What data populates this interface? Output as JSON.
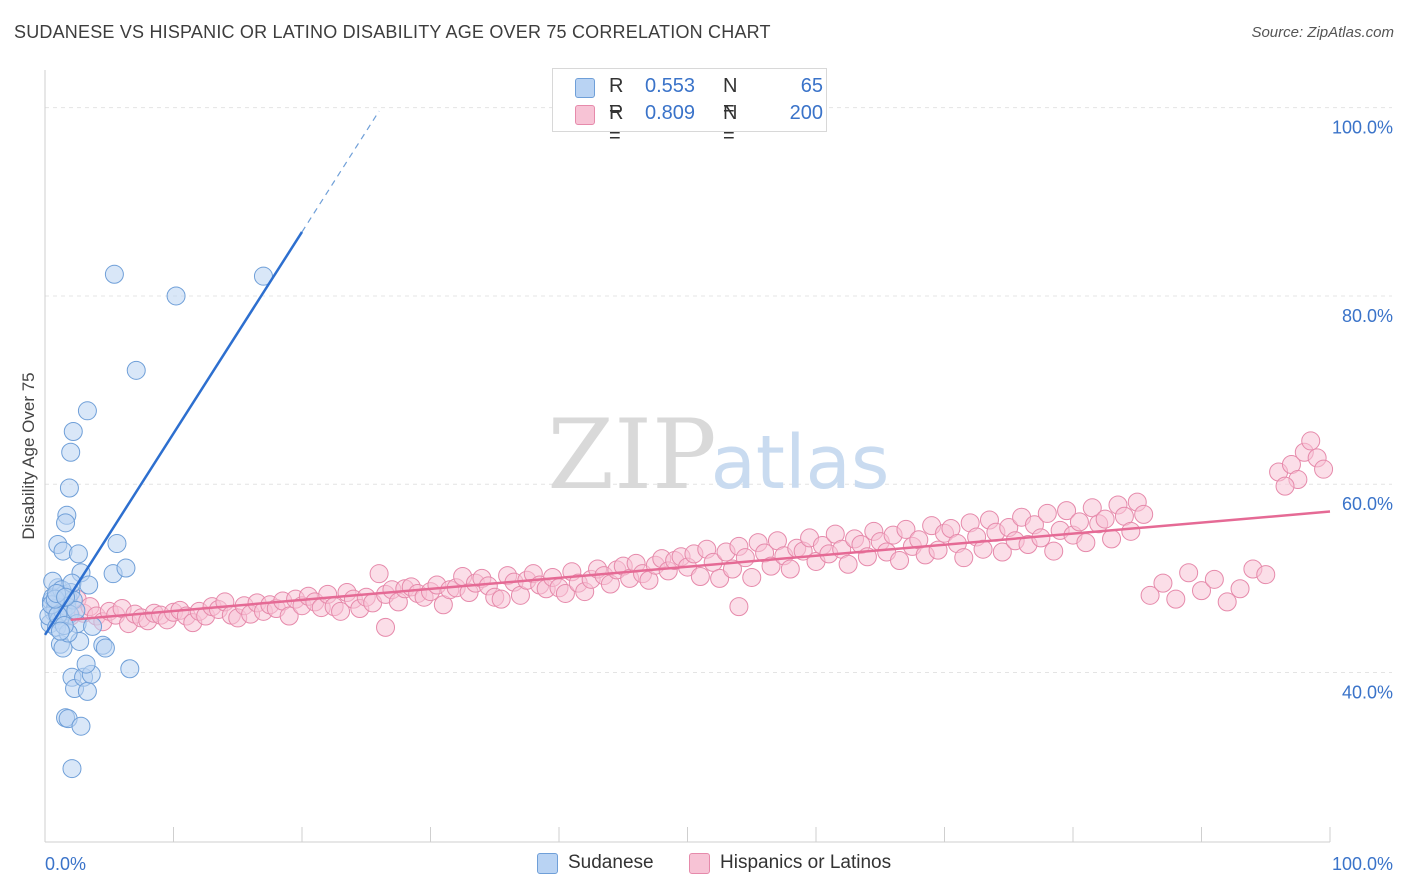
{
  "header": {
    "title": "SUDANESE VS HISPANIC OR LATINO DISABILITY AGE OVER 75 CORRELATION CHART",
    "source": "Source: ZipAtlas.com"
  },
  "watermark": {
    "zip": "ZIP",
    "atlas": "atlas"
  },
  "legend_top": [
    {
      "r_label": "R =",
      "r_value": "0.553",
      "n_label": "N =",
      "n_value": "65"
    },
    {
      "r_label": "R =",
      "r_value": "0.809",
      "n_label": "N =",
      "n_value": "200"
    }
  ],
  "legend_bottom": {
    "series1": "Sudanese",
    "series2": "Hispanics or Latinos"
  },
  "colors": {
    "blue_fill": "#b9d3f3",
    "blue_stroke": "#6f9fd8",
    "blue_line": "#2d6fcf",
    "pink_fill": "#f7c3d5",
    "pink_stroke": "#e68aab",
    "pink_line": "#e56a95",
    "axis_text": "#3a73c9"
  },
  "chart_data": {
    "type": "scatter",
    "title": "SUDANESE VS HISPANIC OR LATINO DISABILITY AGE OVER 75 CORRELATION CHART",
    "ylabel": "Disability Age Over 75",
    "xlim": [
      0,
      100
    ],
    "ylim": [
      22,
      104
    ],
    "x_tick_labels": [
      "0.0%",
      "100.0%"
    ],
    "y_ticks": [
      {
        "value": 40,
        "label": "40.0%"
      },
      {
        "value": 60,
        "label": "60.0%"
      },
      {
        "value": 80,
        "label": "80.0%"
      },
      {
        "value": 100,
        "label": "100.0%"
      }
    ],
    "grid": "horizontal dashed",
    "legend": "top-center and bottom-center",
    "series": [
      {
        "name": "Sudanese",
        "r": 0.553,
        "n": 65,
        "trend": {
          "x0": 0,
          "y0": 44.0,
          "x1": 20,
          "y1": 86.8,
          "dashed_to_x": 26
        },
        "points": [
          [
            0.5,
            47.6
          ],
          [
            0.7,
            46.4
          ],
          [
            0.4,
            45.2
          ],
          [
            1.0,
            49.0
          ],
          [
            1.2,
            47.3
          ],
          [
            0.6,
            48.0
          ],
          [
            0.8,
            46.8
          ],
          [
            1.5,
            48.3
          ],
          [
            1.8,
            47.9
          ],
          [
            2.0,
            48.5
          ],
          [
            0.3,
            46.0
          ],
          [
            1.1,
            45.6
          ],
          [
            1.4,
            46.5
          ],
          [
            0.9,
            44.8
          ],
          [
            1.7,
            47.0
          ],
          [
            2.2,
            47.7
          ],
          [
            0.6,
            49.7
          ],
          [
            1.3,
            48.8
          ],
          [
            1.9,
            46.2
          ],
          [
            0.5,
            47.2
          ],
          [
            1.0,
            53.6
          ],
          [
            1.4,
            52.9
          ],
          [
            1.7,
            56.7
          ],
          [
            2.6,
            52.6
          ],
          [
            2.8,
            50.6
          ],
          [
            1.6,
            55.9
          ],
          [
            2.1,
            49.5
          ],
          [
            3.4,
            49.3
          ],
          [
            5.3,
            50.5
          ],
          [
            5.6,
            53.7
          ],
          [
            6.3,
            51.1
          ],
          [
            1.9,
            59.6
          ],
          [
            2.2,
            65.6
          ],
          [
            2.0,
            63.4
          ],
          [
            3.3,
            67.8
          ],
          [
            7.1,
            72.1
          ],
          [
            5.4,
            82.3
          ],
          [
            10.2,
            80.0
          ],
          [
            17.0,
            82.1
          ],
          [
            1.2,
            43.0
          ],
          [
            1.4,
            42.6
          ],
          [
            2.7,
            43.3
          ],
          [
            4.5,
            42.9
          ],
          [
            4.7,
            42.6
          ],
          [
            2.5,
            45.2
          ],
          [
            3.7,
            44.9
          ],
          [
            1.8,
            44.2
          ],
          [
            2.1,
            39.5
          ],
          [
            2.3,
            38.3
          ],
          [
            3.0,
            39.5
          ],
          [
            3.3,
            38.0
          ],
          [
            3.6,
            39.8
          ],
          [
            3.2,
            40.9
          ],
          [
            6.6,
            40.4
          ],
          [
            1.6,
            35.2
          ],
          [
            1.8,
            35.1
          ],
          [
            2.8,
            34.3
          ],
          [
            2.1,
            29.8
          ],
          [
            1.0,
            46.1
          ],
          [
            0.8,
            47.8
          ],
          [
            1.5,
            45.0
          ],
          [
            2.4,
            46.6
          ],
          [
            0.9,
            48.4
          ],
          [
            1.2,
            44.4
          ],
          [
            1.6,
            48.0
          ]
        ]
      },
      {
        "name": "Hispanics or Latinos",
        "r": 0.809,
        "n": 200,
        "trend": {
          "x0": 2,
          "y0": 45.6,
          "x1": 100,
          "y1": 57.1
        },
        "points": [
          [
            1.0,
            46.5
          ],
          [
            1.5,
            47.2
          ],
          [
            2.0,
            46.0
          ],
          [
            2.5,
            47.8
          ],
          [
            3.0,
            46.3
          ],
          [
            3.5,
            47.0
          ],
          [
            4.0,
            46.0
          ],
          [
            4.5,
            45.4
          ],
          [
            5.0,
            46.5
          ],
          [
            5.5,
            46.1
          ],
          [
            6.0,
            46.8
          ],
          [
            6.5,
            45.2
          ],
          [
            7.0,
            46.2
          ],
          [
            7.5,
            45.8
          ],
          [
            8.0,
            45.5
          ],
          [
            8.5,
            46.3
          ],
          [
            9.0,
            46.1
          ],
          [
            9.5,
            45.6
          ],
          [
            10.0,
            46.4
          ],
          [
            10.5,
            46.6
          ],
          [
            11.0,
            46.0
          ],
          [
            11.5,
            45.3
          ],
          [
            12.0,
            46.5
          ],
          [
            12.5,
            46.0
          ],
          [
            13.0,
            47.0
          ],
          [
            13.5,
            46.7
          ],
          [
            14.0,
            47.5
          ],
          [
            14.5,
            46.1
          ],
          [
            15.0,
            45.8
          ],
          [
            15.5,
            47.1
          ],
          [
            16.0,
            46.2
          ],
          [
            16.5,
            47.4
          ],
          [
            17.0,
            46.5
          ],
          [
            17.5,
            47.2
          ],
          [
            18.0,
            46.8
          ],
          [
            18.5,
            47.6
          ],
          [
            19.0,
            46.0
          ],
          [
            19.5,
            47.8
          ],
          [
            20.0,
            47.1
          ],
          [
            20.5,
            48.1
          ],
          [
            21.0,
            47.5
          ],
          [
            21.5,
            46.9
          ],
          [
            22.0,
            48.3
          ],
          [
            22.5,
            47.0
          ],
          [
            23.0,
            46.5
          ],
          [
            23.5,
            48.5
          ],
          [
            24.0,
            47.8
          ],
          [
            24.5,
            46.8
          ],
          [
            25.0,
            48.0
          ],
          [
            25.5,
            47.4
          ],
          [
            26.0,
            50.5
          ],
          [
            26.5,
            48.3
          ],
          [
            27.0,
            48.8
          ],
          [
            27.5,
            47.5
          ],
          [
            28.0,
            48.9
          ],
          [
            28.5,
            49.1
          ],
          [
            29.0,
            48.4
          ],
          [
            29.5,
            48.0
          ],
          [
            30.0,
            48.6
          ],
          [
            30.5,
            49.3
          ],
          [
            31.0,
            47.2
          ],
          [
            31.5,
            48.8
          ],
          [
            32.0,
            49.0
          ],
          [
            32.5,
            50.2
          ],
          [
            33.0,
            48.5
          ],
          [
            33.5,
            49.5
          ],
          [
            34.0,
            50.0
          ],
          [
            34.5,
            49.2
          ],
          [
            35.0,
            48.0
          ],
          [
            35.5,
            47.8
          ],
          [
            36.0,
            50.3
          ],
          [
            36.5,
            49.6
          ],
          [
            37.0,
            48.2
          ],
          [
            37.5,
            49.8
          ],
          [
            38.0,
            50.5
          ],
          [
            38.5,
            49.3
          ],
          [
            39.0,
            48.9
          ],
          [
            39.5,
            50.1
          ],
          [
            40.0,
            49.0
          ],
          [
            40.5,
            48.4
          ],
          [
            41.0,
            50.7
          ],
          [
            41.5,
            49.5
          ],
          [
            42.0,
            48.6
          ],
          [
            42.5,
            49.9
          ],
          [
            43.0,
            51.0
          ],
          [
            43.5,
            50.3
          ],
          [
            44.0,
            49.4
          ],
          [
            44.5,
            50.9
          ],
          [
            45.0,
            51.3
          ],
          [
            45.5,
            50.0
          ],
          [
            46.0,
            51.6
          ],
          [
            46.5,
            50.5
          ],
          [
            47.0,
            49.8
          ],
          [
            47.5,
            51.4
          ],
          [
            48.0,
            52.1
          ],
          [
            48.5,
            50.8
          ],
          [
            49.0,
            51.9
          ],
          [
            49.5,
            52.3
          ],
          [
            50.0,
            51.2
          ],
          [
            50.5,
            52.6
          ],
          [
            51.0,
            50.2
          ],
          [
            51.5,
            53.1
          ],
          [
            52.0,
            51.7
          ],
          [
            52.5,
            50.0
          ],
          [
            53.0,
            52.8
          ],
          [
            53.5,
            51.0
          ],
          [
            54.0,
            53.4
          ],
          [
            54.5,
            52.2
          ],
          [
            55.0,
            50.1
          ],
          [
            55.5,
            53.8
          ],
          [
            56.0,
            52.7
          ],
          [
            56.5,
            51.3
          ],
          [
            57.0,
            54.0
          ],
          [
            57.5,
            52.4
          ],
          [
            58.0,
            51.0
          ],
          [
            58.5,
            53.2
          ],
          [
            59.0,
            52.9
          ],
          [
            59.5,
            54.3
          ],
          [
            60.0,
            51.8
          ],
          [
            60.5,
            53.5
          ],
          [
            61.0,
            52.6
          ],
          [
            61.5,
            54.7
          ],
          [
            62.0,
            53.1
          ],
          [
            62.5,
            51.5
          ],
          [
            63.0,
            54.2
          ],
          [
            63.5,
            53.6
          ],
          [
            64.0,
            52.3
          ],
          [
            64.5,
            55.0
          ],
          [
            65.0,
            53.9
          ],
          [
            65.5,
            52.8
          ],
          [
            66.0,
            54.6
          ],
          [
            66.5,
            51.9
          ],
          [
            67.0,
            55.2
          ],
          [
            67.5,
            53.4
          ],
          [
            68.0,
            54.1
          ],
          [
            68.5,
            52.5
          ],
          [
            69.0,
            55.6
          ],
          [
            69.5,
            53.0
          ],
          [
            70.0,
            54.8
          ],
          [
            70.5,
            55.3
          ],
          [
            71.0,
            53.7
          ],
          [
            71.5,
            52.2
          ],
          [
            72.0,
            55.9
          ],
          [
            72.5,
            54.4
          ],
          [
            73.0,
            53.1
          ],
          [
            73.5,
            56.2
          ],
          [
            74.0,
            54.9
          ],
          [
            74.5,
            52.8
          ],
          [
            75.0,
            55.4
          ],
          [
            75.5,
            54.0
          ],
          [
            76.0,
            56.5
          ],
          [
            76.5,
            53.6
          ],
          [
            77.0,
            55.7
          ],
          [
            77.5,
            54.3
          ],
          [
            78.0,
            56.9
          ],
          [
            78.5,
            52.9
          ],
          [
            79.0,
            55.1
          ],
          [
            79.5,
            57.2
          ],
          [
            80.0,
            54.6
          ],
          [
            80.5,
            56.0
          ],
          [
            81.0,
            53.8
          ],
          [
            81.5,
            57.5
          ],
          [
            82.0,
            55.8
          ],
          [
            82.5,
            56.3
          ],
          [
            83.0,
            54.2
          ],
          [
            83.5,
            57.8
          ],
          [
            84.0,
            56.6
          ],
          [
            84.5,
            55.0
          ],
          [
            85.0,
            58.1
          ],
          [
            85.5,
            56.8
          ],
          [
            86.0,
            48.2
          ],
          [
            87.0,
            49.5
          ],
          [
            88.0,
            47.8
          ],
          [
            89.0,
            50.6
          ],
          [
            90.0,
            48.7
          ],
          [
            91.0,
            49.9
          ],
          [
            92.0,
            47.5
          ],
          [
            93.0,
            48.9
          ],
          [
            94.0,
            51.0
          ],
          [
            95.0,
            50.4
          ],
          [
            96.0,
            61.3
          ],
          [
            97.0,
            62.1
          ],
          [
            98.0,
            63.4
          ],
          [
            98.5,
            64.6
          ],
          [
            99.0,
            62.8
          ],
          [
            99.5,
            61.6
          ],
          [
            97.5,
            60.5
          ],
          [
            96.5,
            59.8
          ],
          [
            26.5,
            44.8
          ],
          [
            54.0,
            47.0
          ]
        ]
      }
    ]
  }
}
